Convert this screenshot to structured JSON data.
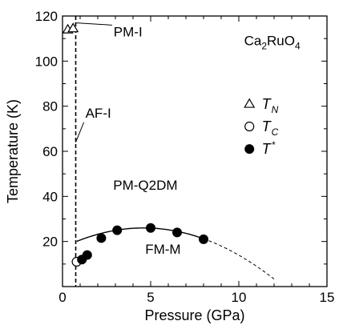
{
  "chart_data": {
    "type": "scatter",
    "xlabel": "Pressure (GPa)",
    "ylabel": "Temperature (K)",
    "xlim": [
      0,
      15
    ],
    "ylim": [
      0,
      120
    ],
    "xticks": [
      0,
      5,
      10,
      15
    ],
    "yticks": [
      20,
      40,
      60,
      80,
      100,
      120
    ],
    "compound": {
      "base1": "Ca",
      "sub1": "2",
      "base2": "RuO",
      "sub2": "4"
    },
    "series": [
      {
        "name": "T_N",
        "symbol": "T",
        "subscript": "N",
        "marker": "triangle-open",
        "points": [
          [
            0.3,
            114
          ],
          [
            0.6,
            114.5
          ]
        ]
      },
      {
        "name": "T_C",
        "symbol": "T",
        "subscript": "C",
        "marker": "circle-open",
        "points": [
          [
            0.8,
            11
          ]
        ]
      },
      {
        "name": "T*",
        "symbol": "T",
        "subscript": "*",
        "marker": "circle-filled",
        "points": [
          [
            1.1,
            12
          ],
          [
            1.4,
            14
          ],
          [
            2.2,
            21.5
          ],
          [
            3.1,
            25
          ],
          [
            5.0,
            26
          ],
          [
            6.5,
            24
          ],
          [
            8.0,
            21
          ]
        ]
      }
    ],
    "fit_curve": {
      "peak_x": 4.6,
      "peak_y": 26,
      "x_start": 0.8,
      "x_solid_end": 8.0,
      "x_dashed_end": 12,
      "a": 0.414
    },
    "phase_boundary_x": 0.75,
    "regions": [
      {
        "label": "PM-I",
        "at": [
          2.9,
          111
        ],
        "arrow_to": [
          0.7,
          117
        ]
      },
      {
        "label": "AF-I",
        "at": [
          1.3,
          75
        ],
        "arrow_to": [
          0.75,
          64
        ]
      },
      {
        "label": "PM-Q2DM",
        "at": [
          4.7,
          43
        ]
      },
      {
        "label": "FM-M",
        "at": [
          5.7,
          14.5
        ]
      }
    ]
  }
}
